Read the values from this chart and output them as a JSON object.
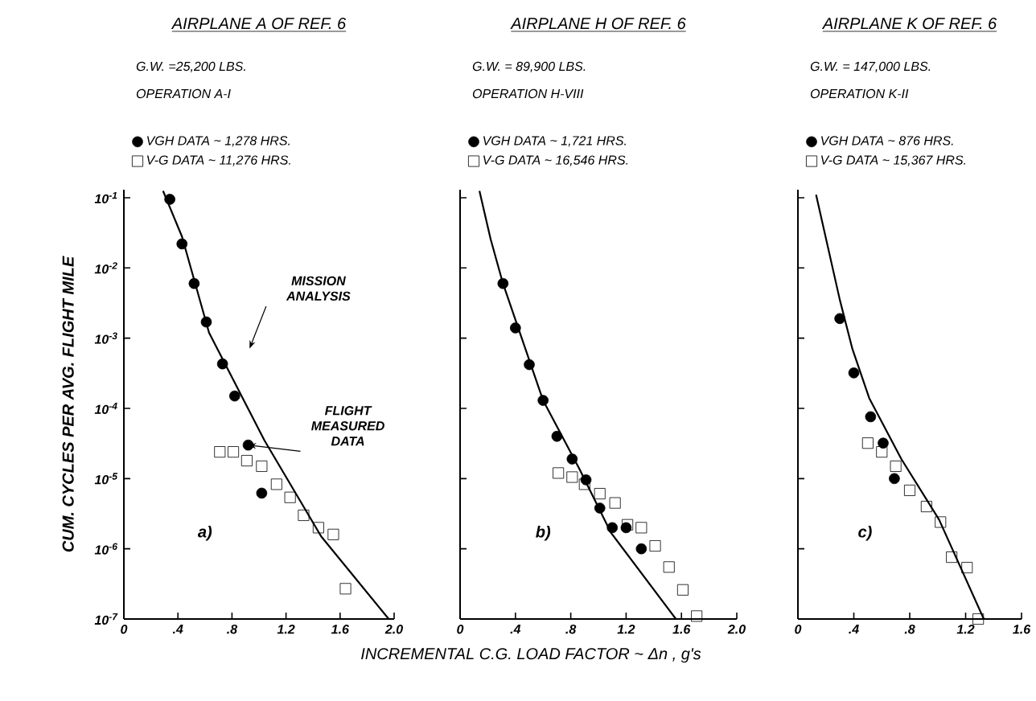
{
  "chart_data": [
    {
      "type": "scatter",
      "title": "AIRPLANE A OF REF. 6",
      "subtitle": "G.W. =25,200 LBS.",
      "ylabel": "CUM. CYCLES PER AVG. FLIGHT MILE",
      "legend": "top",
      "annotations": [
        "OPERATION A-I",
        "a)",
        "MISSION ANALYSIS",
        {
          "text": "FLIGHT MEASURED DATA",
          "x": 0.92,
          "y": 3e-05
        }
      ],
      "xlim": [
        0,
        2.0
      ],
      "xticks": [
        0,
        {
          "value": 0.4,
          "label": ".4"
        },
        {
          "value": 0.8,
          "label": ".8"
        },
        1.2,
        1.6,
        {
          "value": 2.0,
          "label": "2.0"
        }
      ],
      "ylim": [
        1e-07,
        0.13
      ],
      "log": "y",
      "yticks": [
        {
          "value": 1e-07,
          "label": "10$^{-7}$"
        },
        {
          "value": 1e-06,
          "label": "10$^{-6}$"
        },
        {
          "value": 1e-05,
          "label": "10$^{-5}$"
        },
        {
          "value": 0.0001,
          "label": "10$^{-4}$"
        },
        {
          "value": 0.001,
          "label": "10$^{-3}$"
        },
        {
          "value": 0.01,
          "label": "10$^{-2}$"
        },
        {
          "value": 0.1,
          "label": "10$^{-1}$"
        }
      ],
      "series": [
        {
          "name": "VGH DATA ~ 1,278 HRS.",
          "marker": "circle",
          "color": "#000000",
          "x": [
            0.34,
            0.43,
            0.52,
            0.61,
            0.73,
            0.82,
            0.92,
            1.02
          ],
          "values": [
            0.095,
            0.022,
            0.006,
            0.0017,
            0.00043,
            0.00015,
            3e-05,
            6.2e-06
          ]
        },
        {
          "name": "V-G DATA ~ 11,276 HRS.",
          "marker": "square",
          "color": "#000000",
          "x": [
            0.71,
            0.81,
            0.91,
            1.02,
            1.13,
            1.23,
            1.33,
            1.44,
            1.55,
            1.64
          ],
          "values": [
            2.4e-05,
            2.4e-05,
            1.8e-05,
            1.5e-05,
            8.3e-06,
            5.4e-06,
            3e-06,
            2e-06,
            1.6e-06,
            2.7e-07
          ]
        },
        {
          "type": "line",
          "color": "#000000",
          "x": [
            0.29,
            0.43,
            0.63,
            1.04,
            1.46,
            1.96
          ],
          "values": [
            0.125,
            0.028,
            0.0012,
            3.5e-05,
            1.5e-06,
            1e-07
          ]
        }
      ]
    },
    {
      "type": "scatter",
      "title": "AIRPLANE H OF REF. 6",
      "subtitle": "G.W. = 89,900 LBS.",
      "xlabel": "INCREMENTAL C.G. LOAD FACTOR ~ Δn , g's",
      "legend": "top",
      "tick_labels": "x",
      "annotations": [
        "OPERATION H-VIII",
        "b)"
      ],
      "xlim": [
        0,
        2.0
      ],
      "xticks": [
        0,
        {
          "value": 0.4,
          "label": ".4"
        },
        {
          "value": 0.8,
          "label": ".8"
        },
        1.2,
        1.6,
        {
          "value": 2.0,
          "label": "2.0"
        }
      ],
      "ylim": [
        1e-07,
        0.13
      ],
      "log": "y",
      "yticks": [
        {
          "value": 1e-07,
          "label": null
        },
        {
          "value": 1e-06,
          "label": null
        },
        {
          "value": 1e-05,
          "label": null
        },
        {
          "value": 0.0001,
          "label": null
        },
        {
          "value": 0.001,
          "label": null
        },
        {
          "value": 0.01,
          "label": null
        },
        {
          "value": 0.1,
          "label": null
        }
      ],
      "series": [
        {
          "name": "VGH DATA ~ 1,721 HRS.",
          "marker": "circle",
          "color": "#000000",
          "x": [
            0.31,
            0.4,
            0.5,
            0.6,
            0.7,
            0.81,
            0.91,
            1.01,
            1.1,
            1.2,
            1.31
          ],
          "values": [
            0.006,
            0.0014,
            0.00042,
            0.00013,
            4e-05,
            1.9e-05,
            9.6e-06,
            3.8e-06,
            2e-06,
            2e-06,
            1e-06
          ]
        },
        {
          "name": "V-G DATA ~ 16,546 HRS.",
          "marker": "square",
          "color": "#000000",
          "x": [
            0.71,
            0.81,
            0.9,
            1.01,
            1.12,
            1.21,
            1.31,
            1.41,
            1.51,
            1.61,
            1.71
          ],
          "values": [
            1.2e-05,
            1.05e-05,
            8.3e-06,
            6.1e-06,
            4.5e-06,
            2.2e-06,
            2e-06,
            1.1e-06,
            5.5e-07,
            2.6e-07,
            1.1e-07
          ]
        },
        {
          "type": "line",
          "color": "#000000",
          "x": [
            0.14,
            0.22,
            0.31,
            0.6,
            0.86,
            1.09,
            1.56
          ],
          "values": [
            0.125,
            0.026,
            0.006,
            0.00013,
            1.4e-05,
            1.7e-06,
            1e-07
          ]
        }
      ]
    },
    {
      "type": "scatter",
      "title": "AIRPLANE K OF REF. 6",
      "subtitle": "G.W. = 147,000 LBS.",
      "legend": "top",
      "tick_labels": "x",
      "annotations": [
        "OPERATION K-II",
        "c)"
      ],
      "xlim": [
        0,
        1.6
      ],
      "xticks": [
        0,
        {
          "value": 0.4,
          "label": ".4"
        },
        {
          "value": 0.8,
          "label": ".8"
        },
        1.2,
        1.6
      ],
      "ylim": [
        1e-07,
        0.13
      ],
      "log": "y",
      "yticks": [
        {
          "value": 1e-07,
          "label": null
        },
        {
          "value": 1e-06,
          "label": null
        },
        {
          "value": 1e-05,
          "label": null
        },
        {
          "value": 0.0001,
          "label": null
        },
        {
          "value": 0.001,
          "label": null
        },
        {
          "value": 0.01,
          "label": null
        },
        {
          "value": 0.1,
          "label": null
        }
      ],
      "series": [
        {
          "name": "VGH DATA ~ 876 HRS.",
          "marker": "circle",
          "color": "#000000",
          "x": [
            0.3,
            0.4,
            0.52,
            0.61,
            0.69
          ],
          "values": [
            0.0019,
            0.00032,
            7.6e-05,
            3.2e-05,
            1e-05
          ]
        },
        {
          "name": "V-G DATA ~ 15,367 HRS.",
          "marker": "square",
          "color": "#000000",
          "x": [
            0.5,
            0.6,
            0.7,
            0.8,
            0.92,
            1.02,
            1.1,
            1.21,
            1.29
          ],
          "values": [
            3.2e-05,
            2.4e-05,
            1.5e-05,
            6.8e-06,
            4e-06,
            2.4e-06,
            7.6e-07,
            5.4e-07,
            1e-07
          ]
        },
        {
          "type": "line",
          "color": "#000000",
          "x": [
            0.13,
            0.3,
            0.39,
            0.51,
            0.74,
            1.01,
            1.33
          ],
          "values": [
            0.11,
            0.0035,
            0.0007,
            0.00014,
            1.9e-05,
            2.6e-06,
            1e-07
          ]
        }
      ]
    }
  ]
}
